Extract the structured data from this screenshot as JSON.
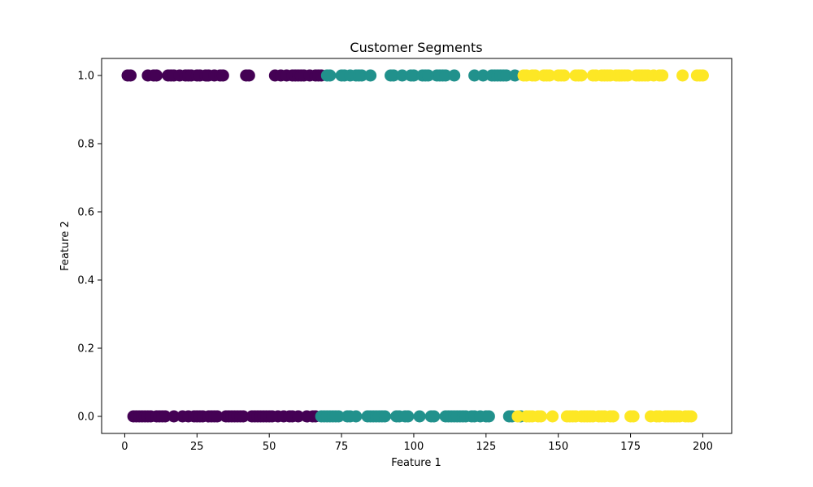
{
  "chart_data": {
    "type": "scatter",
    "title": "Customer Segments",
    "xlabel": "Feature 1",
    "ylabel": "Feature 2",
    "xlim": [
      -8,
      210
    ],
    "ylim": [
      -0.05,
      1.05
    ],
    "xticks": [
      0,
      25,
      50,
      75,
      100,
      125,
      150,
      175,
      200
    ],
    "yticks": [
      0.0,
      0.2,
      0.4,
      0.6,
      0.8,
      1.0
    ],
    "xtick_labels": [
      "0",
      "25",
      "50",
      "75",
      "100",
      "125",
      "150",
      "175",
      "200"
    ],
    "ytick_labels": [
      "0.0",
      "0.2",
      "0.4",
      "0.6",
      "0.8",
      "1.0"
    ],
    "grid": false,
    "colormap": "viridis",
    "series": [
      {
        "color": "#440154",
        "points": [
          [
            1,
            1
          ],
          [
            2,
            1
          ],
          [
            8,
            1
          ],
          [
            10,
            1
          ],
          [
            11,
            1
          ],
          [
            15,
            1
          ],
          [
            16,
            1
          ],
          [
            17,
            1
          ],
          [
            19,
            1
          ],
          [
            21,
            1
          ],
          [
            22,
            1
          ],
          [
            23,
            1
          ],
          [
            25,
            1
          ],
          [
            26,
            1
          ],
          [
            28,
            1
          ],
          [
            29,
            1
          ],
          [
            31,
            1
          ],
          [
            33,
            1
          ],
          [
            34,
            1
          ],
          [
            42,
            1
          ],
          [
            43,
            1
          ],
          [
            52,
            1
          ],
          [
            54,
            1
          ],
          [
            56,
            1
          ],
          [
            58,
            1
          ],
          [
            59,
            1
          ],
          [
            60,
            1
          ],
          [
            61,
            1
          ],
          [
            62,
            1
          ],
          [
            64,
            1
          ],
          [
            66,
            1
          ],
          [
            67,
            1
          ],
          [
            68,
            1
          ],
          [
            3,
            0
          ],
          [
            4,
            0
          ],
          [
            5,
            0
          ],
          [
            6,
            0
          ],
          [
            7,
            0
          ],
          [
            8,
            0
          ],
          [
            9,
            0
          ],
          [
            11,
            0
          ],
          [
            12,
            0
          ],
          [
            13,
            0
          ],
          [
            14,
            0
          ],
          [
            17,
            0
          ],
          [
            20,
            0
          ],
          [
            22,
            0
          ],
          [
            24,
            0
          ],
          [
            25,
            0
          ],
          [
            26,
            0
          ],
          [
            27,
            0
          ],
          [
            29,
            0
          ],
          [
            30,
            0
          ],
          [
            31,
            0
          ],
          [
            32,
            0
          ],
          [
            35,
            0
          ],
          [
            36,
            0
          ],
          [
            37,
            0
          ],
          [
            38,
            0
          ],
          [
            39,
            0
          ],
          [
            40,
            0
          ],
          [
            41,
            0
          ],
          [
            44,
            0
          ],
          [
            45,
            0
          ],
          [
            46,
            0
          ],
          [
            47,
            0
          ],
          [
            48,
            0
          ],
          [
            49,
            0
          ],
          [
            50,
            0
          ],
          [
            51,
            0
          ],
          [
            53,
            0
          ],
          [
            55,
            0
          ],
          [
            57,
            0
          ],
          [
            58,
            0
          ],
          [
            60,
            0
          ],
          [
            63,
            0
          ],
          [
            65,
            0
          ],
          [
            66,
            0
          ]
        ]
      },
      {
        "color": "#21918c",
        "points": [
          [
            70,
            1
          ],
          [
            71,
            1
          ],
          [
            75,
            1
          ],
          [
            76,
            1
          ],
          [
            78,
            1
          ],
          [
            80,
            1
          ],
          [
            81,
            1
          ],
          [
            82,
            1
          ],
          [
            85,
            1
          ],
          [
            92,
            1
          ],
          [
            93,
            1
          ],
          [
            96,
            1
          ],
          [
            99,
            1
          ],
          [
            100,
            1
          ],
          [
            103,
            1
          ],
          [
            104,
            1
          ],
          [
            105,
            1
          ],
          [
            108,
            1
          ],
          [
            109,
            1
          ],
          [
            110,
            1
          ],
          [
            111,
            1
          ],
          [
            114,
            1
          ],
          [
            121,
            1
          ],
          [
            124,
            1
          ],
          [
            127,
            1
          ],
          [
            128,
            1
          ],
          [
            129,
            1
          ],
          [
            130,
            1
          ],
          [
            131,
            1
          ],
          [
            132,
            1
          ],
          [
            135,
            1
          ],
          [
            68,
            0
          ],
          [
            69,
            0
          ],
          [
            70,
            0
          ],
          [
            71,
            0
          ],
          [
            72,
            0
          ],
          [
            73,
            0
          ],
          [
            74,
            0
          ],
          [
            77,
            0
          ],
          [
            78,
            0
          ],
          [
            80,
            0
          ],
          [
            84,
            0
          ],
          [
            85,
            0
          ],
          [
            86,
            0
          ],
          [
            87,
            0
          ],
          [
            88,
            0
          ],
          [
            89,
            0
          ],
          [
            90,
            0
          ],
          [
            94,
            0
          ],
          [
            95,
            0
          ],
          [
            97,
            0
          ],
          [
            98,
            0
          ],
          [
            102,
            0
          ],
          [
            106,
            0
          ],
          [
            107,
            0
          ],
          [
            111,
            0
          ],
          [
            112,
            0
          ],
          [
            113,
            0
          ],
          [
            114,
            0
          ],
          [
            115,
            0
          ],
          [
            116,
            0
          ],
          [
            117,
            0
          ],
          [
            118,
            0
          ],
          [
            120,
            0
          ],
          [
            121,
            0
          ],
          [
            123,
            0
          ],
          [
            125,
            0
          ],
          [
            126,
            0
          ],
          [
            133,
            0
          ],
          [
            134,
            0
          ],
          [
            137,
            0
          ]
        ]
      },
      {
        "color": "#fde725",
        "points": [
          [
            138,
            1
          ],
          [
            139,
            1
          ],
          [
            141,
            1
          ],
          [
            142,
            1
          ],
          [
            145,
            1
          ],
          [
            146,
            1
          ],
          [
            147,
            1
          ],
          [
            150,
            1
          ],
          [
            151,
            1
          ],
          [
            152,
            1
          ],
          [
            156,
            1
          ],
          [
            157,
            1
          ],
          [
            158,
            1
          ],
          [
            162,
            1
          ],
          [
            163,
            1
          ],
          [
            165,
            1
          ],
          [
            166,
            1
          ],
          [
            167,
            1
          ],
          [
            168,
            1
          ],
          [
            170,
            1
          ],
          [
            171,
            1
          ],
          [
            172,
            1
          ],
          [
            173,
            1
          ],
          [
            174,
            1
          ],
          [
            177,
            1
          ],
          [
            178,
            1
          ],
          [
            179,
            1
          ],
          [
            180,
            1
          ],
          [
            181,
            1
          ],
          [
            183,
            1
          ],
          [
            185,
            1
          ],
          [
            186,
            1
          ],
          [
            193,
            1
          ],
          [
            198,
            1
          ],
          [
            199,
            1
          ],
          [
            200,
            1
          ],
          [
            136,
            0
          ],
          [
            139,
            0
          ],
          [
            140,
            0
          ],
          [
            141,
            0
          ],
          [
            143,
            0
          ],
          [
            144,
            0
          ],
          [
            148,
            0
          ],
          [
            153,
            0
          ],
          [
            154,
            0
          ],
          [
            155,
            0
          ],
          [
            156,
            0
          ],
          [
            158,
            0
          ],
          [
            159,
            0
          ],
          [
            160,
            0
          ],
          [
            161,
            0
          ],
          [
            162,
            0
          ],
          [
            164,
            0
          ],
          [
            165,
            0
          ],
          [
            166,
            0
          ],
          [
            168,
            0
          ],
          [
            169,
            0
          ],
          [
            175,
            0
          ],
          [
            176,
            0
          ],
          [
            182,
            0
          ],
          [
            184,
            0
          ],
          [
            185,
            0
          ],
          [
            187,
            0
          ],
          [
            188,
            0
          ],
          [
            189,
            0
          ],
          [
            190,
            0
          ],
          [
            191,
            0
          ],
          [
            192,
            0
          ],
          [
            194,
            0
          ],
          [
            195,
            0
          ],
          [
            196,
            0
          ]
        ]
      }
    ]
  }
}
